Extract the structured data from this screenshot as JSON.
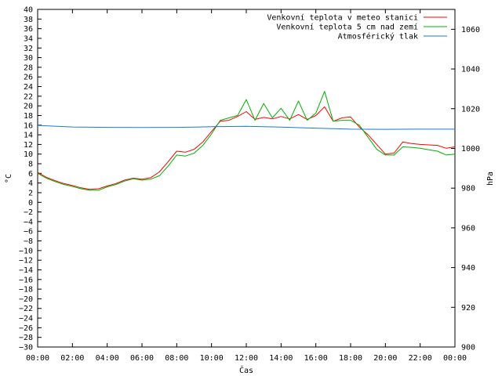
{
  "chart_data": {
    "type": "line",
    "title": "",
    "xlabel": "Čas",
    "ylabel": "°C",
    "y2label": "hPa",
    "ylim": [
      -30,
      40
    ],
    "y2lim": [
      900,
      1070
    ],
    "xlim_hours": [
      0,
      24
    ],
    "x_ticks": [
      "00:00",
      "02:00",
      "04:00",
      "06:00",
      "08:00",
      "10:00",
      "12:00",
      "14:00",
      "16:00",
      "18:00",
      "20:00",
      "22:00",
      "00:00"
    ],
    "y_ticks": [
      40,
      38,
      36,
      34,
      32,
      30,
      28,
      26,
      24,
      22,
      20,
      18,
      16,
      14,
      12,
      10,
      8,
      6,
      4,
      2,
      0,
      -2,
      -4,
      -6,
      -8,
      -10,
      -12,
      -14,
      -16,
      -18,
      -20,
      -22,
      -24,
      -26,
      -28,
      -30
    ],
    "y2_ticks": [
      1060,
      1040,
      1020,
      1000,
      980,
      960,
      940,
      920,
      900
    ],
    "grid": false,
    "legend_position": "top-right",
    "series": [
      {
        "name": "Venkovní teplota v meteo stanici",
        "axis": "left",
        "color": "#ff0000",
        "x": [
          "00:00",
          "00:30",
          "01:00",
          "01:30",
          "02:00",
          "02:30",
          "03:00",
          "03:30",
          "04:00",
          "04:30",
          "05:00",
          "05:30",
          "06:00",
          "06:30",
          "07:00",
          "07:30",
          "08:00",
          "08:30",
          "09:00",
          "09:30",
          "10:00",
          "10:30",
          "11:00",
          "11:30",
          "12:00",
          "12:30",
          "13:00",
          "13:30",
          "14:00",
          "14:30",
          "15:00",
          "15:30",
          "16:00",
          "16:30",
          "17:00",
          "17:30",
          "18:00",
          "18:30",
          "19:00",
          "19:30",
          "20:00",
          "20:30",
          "21:00",
          "21:30",
          "22:00",
          "22:30",
          "23:00",
          "23:30",
          "24:00"
        ],
        "y": [
          6.2,
          5.2,
          4.5,
          3.9,
          3.5,
          3.0,
          2.7,
          2.8,
          3.4,
          3.9,
          4.6,
          5.0,
          4.8,
          5.1,
          6.3,
          8.4,
          10.6,
          10.4,
          11.0,
          12.5,
          14.7,
          16.8,
          17.0,
          17.8,
          18.8,
          17.2,
          17.6,
          17.3,
          17.8,
          17.3,
          18.2,
          17.2,
          18.0,
          19.8,
          16.8,
          17.5,
          17.7,
          15.6,
          14.0,
          12.0,
          10.0,
          10.2,
          12.5,
          12.2,
          12.0,
          11.9,
          11.8,
          11.2,
          11.5
        ]
      },
      {
        "name": "Venkovní teplota 5 cm nad zemí",
        "axis": "left",
        "color": "#00b000",
        "x": [
          "00:00",
          "00:30",
          "01:00",
          "01:30",
          "02:00",
          "02:30",
          "03:00",
          "03:30",
          "04:00",
          "04:30",
          "05:00",
          "05:30",
          "06:00",
          "06:30",
          "07:00",
          "07:30",
          "08:00",
          "08:30",
          "09:00",
          "09:30",
          "10:00",
          "10:30",
          "11:00",
          "11:30",
          "12:00",
          "12:30",
          "13:00",
          "13:30",
          "14:00",
          "14:30",
          "15:00",
          "15:30",
          "16:00",
          "16:30",
          "17:00",
          "17:30",
          "18:00",
          "18:30",
          "19:00",
          "19:30",
          "20:00",
          "20:30",
          "21:00",
          "21:30",
          "22:00",
          "22:30",
          "23:00",
          "23:30",
          "24:00"
        ],
        "y": [
          6.0,
          5.0,
          4.3,
          3.7,
          3.3,
          2.8,
          2.5,
          2.5,
          3.2,
          3.7,
          4.4,
          4.9,
          4.6,
          4.8,
          5.5,
          7.5,
          9.8,
          9.6,
          10.2,
          11.8,
          14.2,
          17.0,
          17.5,
          18.0,
          21.3,
          17.0,
          20.5,
          17.5,
          19.5,
          17.0,
          21.0,
          17.0,
          18.5,
          23.0,
          16.8,
          17.0,
          17.0,
          16.0,
          13.5,
          11.0,
          9.8,
          9.8,
          11.5,
          11.4,
          11.2,
          10.9,
          10.6,
          9.8,
          10.0
        ]
      },
      {
        "name": "Atmosférický tlak",
        "axis": "right",
        "color": "#1a78d6",
        "x": [
          "00:00",
          "02:00",
          "04:00",
          "06:00",
          "08:00",
          "10:00",
          "12:00",
          "14:00",
          "16:00",
          "18:00",
          "20:00",
          "22:00",
          "24:00"
        ],
        "y": [
          1011.6,
          1010.8,
          1010.6,
          1010.5,
          1010.6,
          1010.9,
          1011.1,
          1010.7,
          1010.2,
          1009.7,
          1009.6,
          1009.7,
          1009.7
        ]
      }
    ]
  }
}
